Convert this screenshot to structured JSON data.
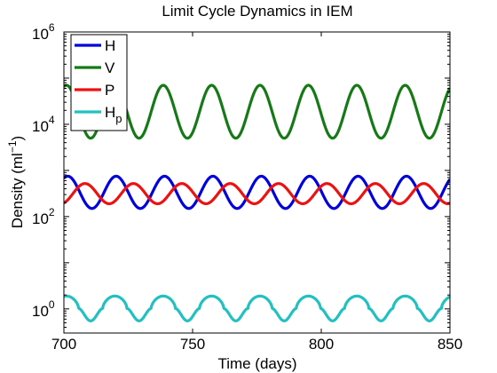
{
  "chart_data": {
    "type": "line",
    "title": "Limit Cycle Dynamics in IEM",
    "xlabel": "Time (days)",
    "ylabel": {
      "base": "Density (ml",
      "sup": "−1",
      "end": ")"
    },
    "xlim": [
      700,
      850
    ],
    "ylim": [
      0.3,
      1000000
    ],
    "yscale": "log",
    "xticks": [
      {
        "value": 700,
        "label": "700"
      },
      {
        "value": 750,
        "label": "750"
      },
      {
        "value": 800,
        "label": "800"
      },
      {
        "value": 850,
        "label": "850"
      }
    ],
    "yticks": [
      {
        "value": 1,
        "base": "10",
        "exp": "0"
      },
      {
        "value": 100,
        "base": "10",
        "exp": "2"
      },
      {
        "value": 10000,
        "base": "10",
        "exp": "4"
      },
      {
        "value": 1000000,
        "base": "10",
        "exp": "6"
      }
    ],
    "grid": false,
    "legend_position": "top-left",
    "period": 18.8,
    "series": [
      {
        "name": "H",
        "label": "H",
        "sub": "",
        "color": "#0000dd",
        "min": 150,
        "max": 750,
        "first_peak": 701.5,
        "shape": "sine"
      },
      {
        "name": "V",
        "label": "V",
        "sub": "",
        "color": "#157a15",
        "min": 5000,
        "max": 70000,
        "first_peak": 701.0,
        "shape": "sine"
      },
      {
        "name": "P",
        "label": "P",
        "sub": "",
        "color": "#ee1111",
        "min": 190,
        "max": 520,
        "first_peak": 708.2,
        "shape": "sine"
      },
      {
        "name": "Hp",
        "label": "H",
        "sub": "p",
        "color": "#22c0c0",
        "min": 0.55,
        "max": 1.9,
        "first_peak": 701.0,
        "shape": "pulse"
      }
    ]
  }
}
